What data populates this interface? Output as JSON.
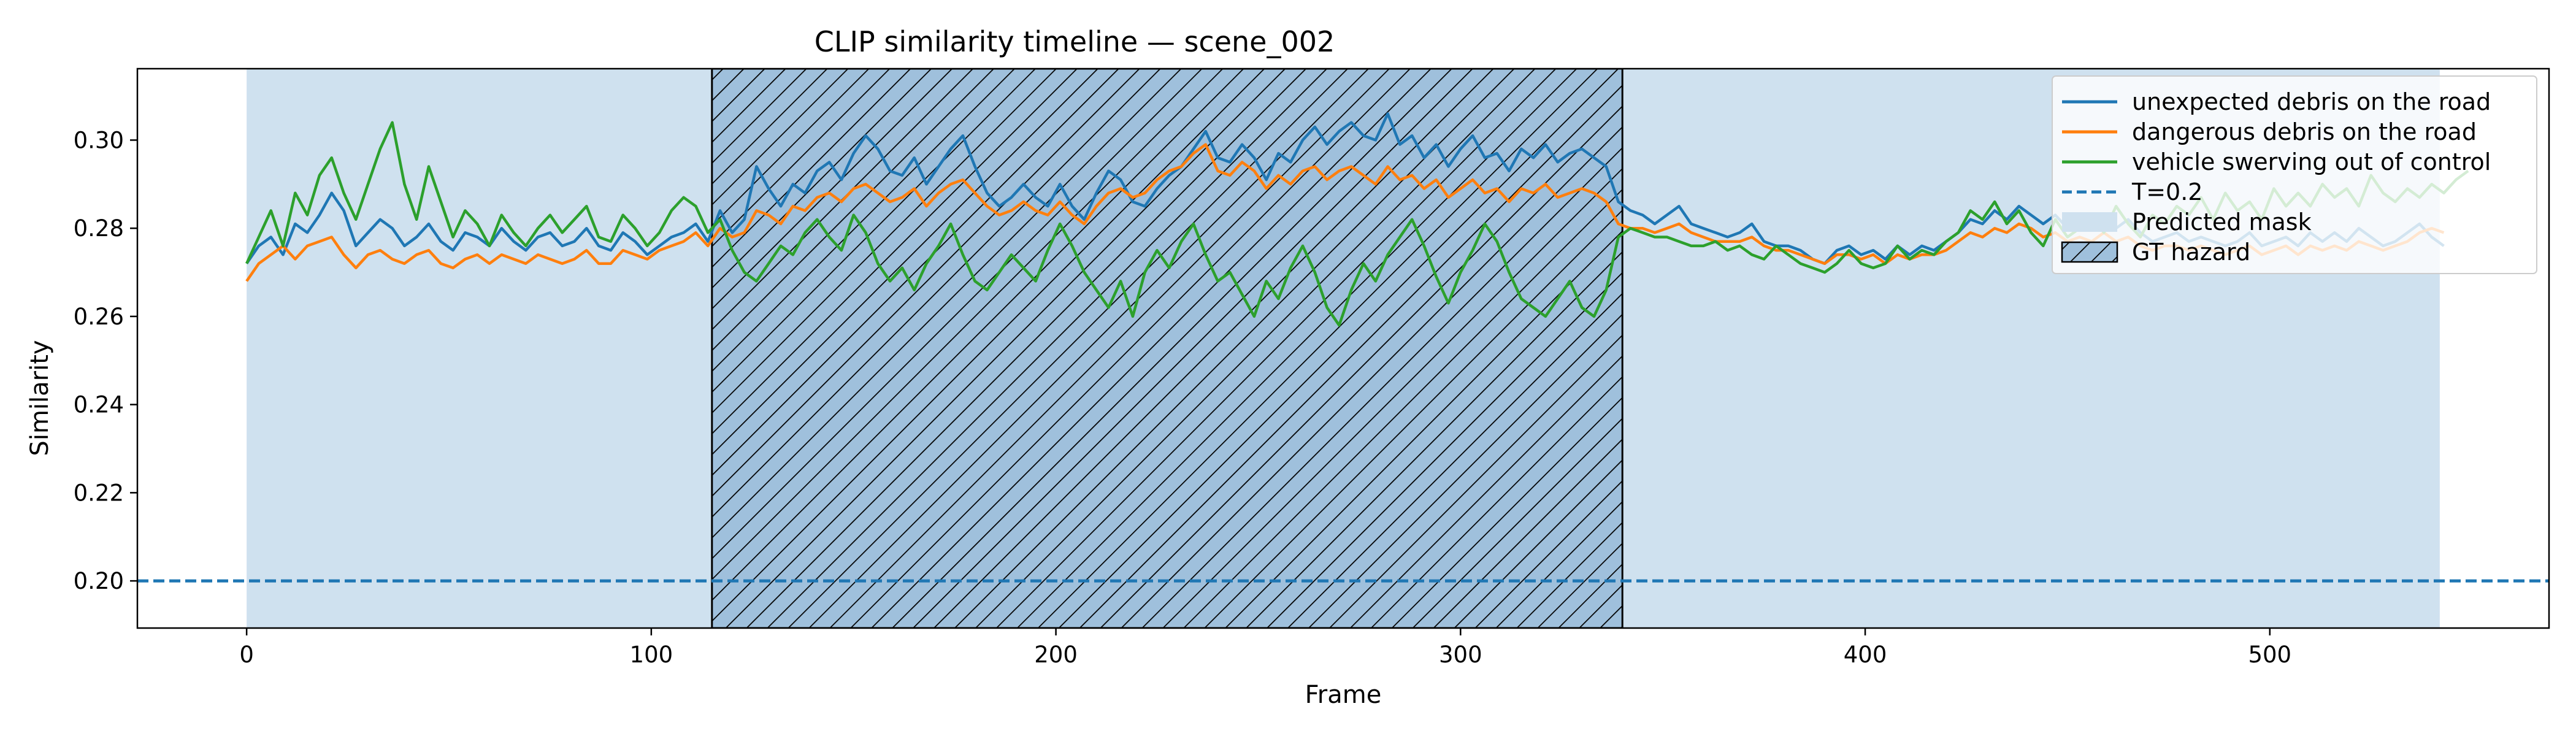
{
  "chart_data": {
    "type": "line",
    "title": "CLIP similarity timeline — scene_002",
    "xlabel": "Frame",
    "ylabel": "Similarity",
    "xlim": [
      -27,
      569
    ],
    "ylim": [
      0.1893,
      0.3162
    ],
    "xticks": [
      0,
      100,
      200,
      300,
      400,
      500
    ],
    "yticks": [
      0.2,
      0.22,
      0.24,
      0.26,
      0.28,
      0.3
    ],
    "ytick_labels": [
      "0.20",
      "0.22",
      "0.24",
      "0.26",
      "0.28",
      "0.30"
    ],
    "grid": false,
    "legend_position": "top-right",
    "x_step": 3,
    "series": [
      {
        "name": "unexpected debris on the road",
        "color": "#1f77b4",
        "x_start": 0,
        "values": [
          0.272,
          0.276,
          0.278,
          0.274,
          0.281,
          0.279,
          0.283,
          0.288,
          0.284,
          0.276,
          0.279,
          0.282,
          0.28,
          0.276,
          0.278,
          0.281,
          0.277,
          0.275,
          0.279,
          0.278,
          0.276,
          0.28,
          0.277,
          0.275,
          0.278,
          0.279,
          0.276,
          0.277,
          0.28,
          0.276,
          0.275,
          0.279,
          0.277,
          0.274,
          0.276,
          0.278,
          0.279,
          0.281,
          0.277,
          0.284,
          0.279,
          0.282,
          0.294,
          0.289,
          0.285,
          0.29,
          0.288,
          0.293,
          0.295,
          0.291,
          0.297,
          0.301,
          0.298,
          0.293,
          0.292,
          0.296,
          0.29,
          0.294,
          0.298,
          0.301,
          0.294,
          0.288,
          0.285,
          0.287,
          0.29,
          0.287,
          0.285,
          0.29,
          0.285,
          0.282,
          0.288,
          0.293,
          0.291,
          0.286,
          0.285,
          0.289,
          0.292,
          0.294,
          0.298,
          0.302,
          0.296,
          0.295,
          0.299,
          0.296,
          0.291,
          0.297,
          0.295,
          0.3,
          0.303,
          0.299,
          0.302,
          0.304,
          0.301,
          0.3,
          0.306,
          0.299,
          0.301,
          0.296,
          0.299,
          0.294,
          0.298,
          0.301,
          0.296,
          0.297,
          0.293,
          0.298,
          0.296,
          0.299,
          0.295,
          0.297,
          0.298,
          0.296,
          0.294,
          0.286,
          0.284,
          0.283,
          0.281,
          0.283,
          0.285,
          0.281,
          0.28,
          0.279,
          0.278,
          0.279,
          0.281,
          0.277,
          0.276,
          0.276,
          0.275,
          0.273,
          0.272,
          0.275,
          0.276,
          0.274,
          0.275,
          0.273,
          0.276,
          0.274,
          0.276,
          0.275,
          0.277,
          0.279,
          0.282,
          0.281,
          0.284,
          0.282,
          0.285,
          0.283,
          0.281,
          0.283,
          0.28,
          0.282,
          0.281,
          0.283,
          0.28,
          0.282,
          0.279,
          0.277,
          0.278,
          0.279,
          0.277,
          0.278,
          0.277,
          0.276,
          0.277,
          0.279,
          0.276,
          0.277,
          0.278,
          0.276,
          0.279,
          0.277,
          0.279,
          0.277,
          0.28,
          0.278,
          0.276,
          0.277,
          0.279,
          0.281,
          0.278,
          0.276
        ]
      },
      {
        "name": "dangerous debris on the road",
        "color": "#ff7f0e",
        "x_start": 0,
        "values": [
          0.268,
          0.272,
          0.274,
          0.276,
          0.273,
          0.276,
          0.277,
          0.278,
          0.274,
          0.271,
          0.274,
          0.275,
          0.273,
          0.272,
          0.274,
          0.275,
          0.272,
          0.271,
          0.273,
          0.274,
          0.272,
          0.274,
          0.273,
          0.272,
          0.274,
          0.273,
          0.272,
          0.273,
          0.275,
          0.272,
          0.272,
          0.275,
          0.274,
          0.273,
          0.275,
          0.276,
          0.277,
          0.279,
          0.276,
          0.28,
          0.278,
          0.279,
          0.284,
          0.283,
          0.281,
          0.285,
          0.284,
          0.287,
          0.288,
          0.286,
          0.289,
          0.29,
          0.288,
          0.286,
          0.287,
          0.289,
          0.285,
          0.288,
          0.29,
          0.291,
          0.288,
          0.285,
          0.283,
          0.284,
          0.286,
          0.284,
          0.283,
          0.286,
          0.283,
          0.281,
          0.285,
          0.288,
          0.289,
          0.287,
          0.288,
          0.291,
          0.293,
          0.294,
          0.297,
          0.299,
          0.293,
          0.292,
          0.295,
          0.293,
          0.289,
          0.292,
          0.29,
          0.293,
          0.294,
          0.291,
          0.293,
          0.294,
          0.292,
          0.29,
          0.294,
          0.291,
          0.292,
          0.289,
          0.291,
          0.287,
          0.289,
          0.291,
          0.288,
          0.289,
          0.286,
          0.289,
          0.288,
          0.29,
          0.287,
          0.288,
          0.289,
          0.288,
          0.286,
          0.281,
          0.28,
          0.28,
          0.279,
          0.28,
          0.281,
          0.279,
          0.278,
          0.277,
          0.277,
          0.277,
          0.278,
          0.276,
          0.275,
          0.275,
          0.274,
          0.273,
          0.272,
          0.274,
          0.274,
          0.273,
          0.274,
          0.272,
          0.274,
          0.273,
          0.274,
          0.274,
          0.275,
          0.277,
          0.279,
          0.278,
          0.28,
          0.279,
          0.281,
          0.28,
          0.278,
          0.279,
          0.277,
          0.278,
          0.277,
          0.279,
          0.277,
          0.278,
          0.276,
          0.275,
          0.276,
          0.276,
          0.275,
          0.276,
          0.275,
          0.274,
          0.275,
          0.276,
          0.274,
          0.275,
          0.276,
          0.274,
          0.276,
          0.275,
          0.276,
          0.275,
          0.277,
          0.276,
          0.275,
          0.276,
          0.277,
          0.279,
          0.28,
          0.279
        ]
      },
      {
        "name": "vehicle swerving out of control",
        "color": "#2ca02c",
        "x_start": 0,
        "values": [
          0.272,
          0.278,
          0.284,
          0.276,
          0.288,
          0.283,
          0.292,
          0.296,
          0.288,
          0.282,
          0.29,
          0.298,
          0.304,
          0.29,
          0.282,
          0.294,
          0.286,
          0.278,
          0.284,
          0.281,
          0.276,
          0.283,
          0.279,
          0.276,
          0.28,
          0.283,
          0.279,
          0.282,
          0.285,
          0.278,
          0.277,
          0.283,
          0.28,
          0.276,
          0.279,
          0.284,
          0.287,
          0.285,
          0.279,
          0.282,
          0.275,
          0.27,
          0.268,
          0.272,
          0.276,
          0.274,
          0.279,
          0.282,
          0.278,
          0.275,
          0.283,
          0.279,
          0.272,
          0.268,
          0.271,
          0.266,
          0.272,
          0.276,
          0.281,
          0.274,
          0.268,
          0.266,
          0.27,
          0.274,
          0.271,
          0.268,
          0.275,
          0.281,
          0.276,
          0.27,
          0.266,
          0.262,
          0.268,
          0.26,
          0.27,
          0.275,
          0.271,
          0.277,
          0.281,
          0.274,
          0.268,
          0.27,
          0.265,
          0.26,
          0.268,
          0.264,
          0.271,
          0.276,
          0.27,
          0.262,
          0.258,
          0.266,
          0.272,
          0.268,
          0.274,
          0.278,
          0.282,
          0.276,
          0.269,
          0.263,
          0.27,
          0.275,
          0.281,
          0.277,
          0.27,
          0.264,
          0.262,
          0.26,
          0.264,
          0.268,
          0.262,
          0.26,
          0.266,
          0.278,
          0.28,
          0.279,
          0.278,
          0.278,
          0.277,
          0.276,
          0.276,
          0.277,
          0.275,
          0.276,
          0.274,
          0.273,
          0.276,
          0.274,
          0.272,
          0.271,
          0.27,
          0.272,
          0.275,
          0.272,
          0.271,
          0.272,
          0.276,
          0.273,
          0.275,
          0.274,
          0.277,
          0.279,
          0.284,
          0.282,
          0.286,
          0.281,
          0.284,
          0.279,
          0.276,
          0.282,
          0.278,
          0.28,
          0.283,
          0.279,
          0.285,
          0.281,
          0.278,
          0.283,
          0.281,
          0.285,
          0.283,
          0.287,
          0.282,
          0.288,
          0.284,
          0.286,
          0.282,
          0.289,
          0.285,
          0.288,
          0.285,
          0.29,
          0.287,
          0.289,
          0.285,
          0.292,
          0.288,
          0.286,
          0.289,
          0.287,
          0.29,
          0.288,
          0.291,
          0.293
        ]
      }
    ],
    "threshold": {
      "label": "T=0.2",
      "value": 0.2,
      "color": "#1f77b4",
      "style": "dashed"
    },
    "shaded_regions": [
      {
        "label": "Predicted mask",
        "x_range": [
          0,
          542
        ],
        "color": "#cfe1ef"
      },
      {
        "label": "GT hazard",
        "x_range": [
          115,
          340
        ],
        "color": "#9fc0dc",
        "pattern": "hatch"
      }
    ]
  }
}
